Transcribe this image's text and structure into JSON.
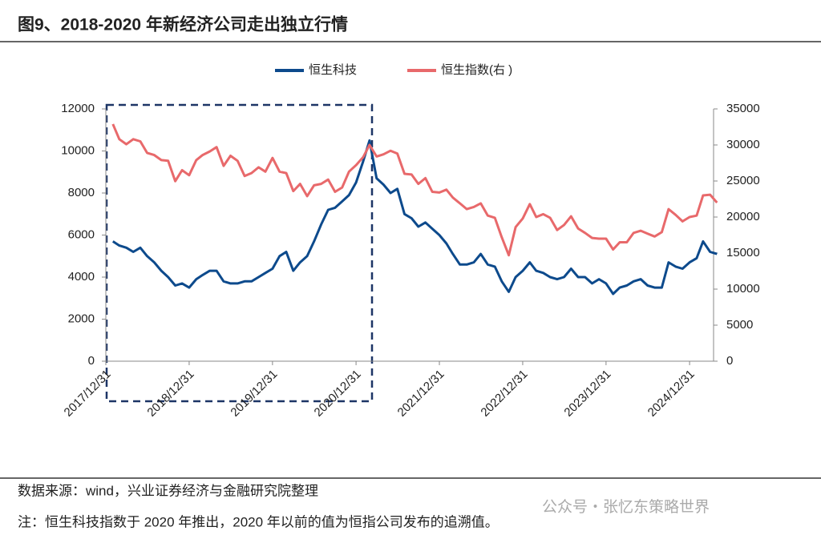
{
  "chart_data": {
    "type": "line",
    "title": "图9、2018-2020 年新经济公司走出独立行情",
    "source": "数据来源：wind，兴业证券经济与金融研究院整理",
    "note": "注：恒生科技指数于 2020 年推出，2020 年以前的值为恒指公司发布的追溯值。",
    "watermark": "公众号・张忆东策略世界",
    "x": [
      "2018/01/31",
      "2018/02/28",
      "2018/03/31",
      "2018/04/30",
      "2018/05/31",
      "2018/06/30",
      "2018/07/31",
      "2018/08/31",
      "2018/09/30",
      "2018/10/31",
      "2018/11/30",
      "2018/12/31",
      "2019/01/31",
      "2019/02/28",
      "2019/03/31",
      "2019/04/30",
      "2019/05/31",
      "2019/06/30",
      "2019/07/31",
      "2019/08/31",
      "2019/09/30",
      "2019/10/31",
      "2019/11/30",
      "2019/12/31",
      "2020/01/31",
      "2020/02/29",
      "2020/03/31",
      "2020/04/30",
      "2020/05/31",
      "2020/06/30",
      "2020/07/31",
      "2020/08/31",
      "2020/09/30",
      "2020/10/31",
      "2020/11/30",
      "2020/12/31",
      "2021/01/31",
      "2021/02/28",
      "2021/03/31",
      "2021/04/30",
      "2021/05/31",
      "2021/06/30",
      "2021/07/31",
      "2021/08/31",
      "2021/09/30",
      "2021/10/31",
      "2021/11/30",
      "2021/12/31",
      "2022/01/31",
      "2022/02/28",
      "2022/03/31",
      "2022/04/30",
      "2022/05/31",
      "2022/06/30",
      "2022/07/31",
      "2022/08/31",
      "2022/09/30",
      "2022/10/31",
      "2022/11/30",
      "2022/12/31",
      "2023/01/31",
      "2023/02/28",
      "2023/03/31",
      "2023/04/30",
      "2023/05/31",
      "2023/06/30",
      "2023/07/31",
      "2023/08/31",
      "2023/09/30",
      "2023/10/31",
      "2023/11/30",
      "2023/12/31",
      "2024/01/31",
      "2024/02/29",
      "2024/03/31",
      "2024/04/30",
      "2024/05/31",
      "2024/06/30",
      "2024/07/31",
      "2024/08/31",
      "2024/09/30",
      "2024/10/31",
      "2024/11/30",
      "2024/12/31",
      "2025/01/31",
      "2025/02/28",
      "2025/03/31",
      "2025/04/30"
    ],
    "series": [
      {
        "name": "恒生科技",
        "color": "#0d4a8c",
        "values": [
          5700,
          5500,
          5400,
          5200,
          5400,
          5000,
          4700,
          4300,
          4000,
          3600,
          3700,
          3500,
          3900,
          4100,
          4300,
          4300,
          3800,
          3700,
          3700,
          3800,
          3800,
          4000,
          4200,
          4400,
          5000,
          5200,
          4300,
          4700,
          5000,
          5700,
          6500,
          7200,
          7300,
          7600,
          7900,
          8500,
          9500,
          10500,
          8700,
          8400,
          8000,
          8200,
          7000,
          6800,
          6400,
          6600,
          6300,
          6000,
          5600,
          5100,
          4600,
          4600,
          4700,
          5100,
          4600,
          4500,
          3800,
          3300,
          4000,
          4300,
          4700,
          4300,
          4200,
          4000,
          3900,
          4000,
          4400,
          4000,
          4000,
          3700,
          3900,
          3700,
          3200,
          3500,
          3600,
          3800,
          3900,
          3600,
          3500,
          3500,
          4700,
          4500,
          4400,
          4700,
          4900,
          5700,
          5200,
          5100
        ]
      },
      {
        "name": "恒生指数(右 )",
        "color": "#e8696b",
        "axis": "y2",
        "values": [
          32900,
          30800,
          30100,
          30800,
          30500,
          28900,
          28600,
          27900,
          27800,
          24980,
          26500,
          25800,
          27900,
          28600,
          29100,
          29700,
          27100,
          28500,
          27800,
          25700,
          26100,
          26900,
          26300,
          28200,
          26300,
          26100,
          23600,
          24600,
          22900,
          24400,
          24600,
          25200,
          23500,
          24100,
          26300,
          27200,
          28300,
          30000,
          28400,
          28700,
          29200,
          28800,
          26000,
          25900,
          24600,
          25400,
          23500,
          23400,
          23800,
          22700,
          21900,
          21100,
          21400,
          21900,
          20200,
          19900,
          17200,
          14700,
          18600,
          19800,
          21800,
          20000,
          20400,
          19900,
          18200,
          18900,
          20100,
          18400,
          17800,
          17100,
          17000,
          17000,
          15500,
          16500,
          16500,
          17800,
          18100,
          17700,
          17300,
          17900,
          21100,
          20300,
          19400,
          20000,
          20200,
          23000,
          23100,
          22000
        ]
      }
    ],
    "xlim": [
      "2017/12/31",
      "2025/04/15"
    ],
    "xticks": [
      "2017/12/31",
      "2018/12/31",
      "2019/12/31",
      "2020/12/31",
      "2021/12/31",
      "2022/12/31",
      "2023/12/31",
      "2024/12/31"
    ],
    "ylim": [
      0,
      12000
    ],
    "yticks": [
      0,
      2000,
      4000,
      6000,
      8000,
      10000,
      12000
    ],
    "y2lim": [
      0,
      35000
    ],
    "y2ticks": [
      0,
      5000,
      10000,
      15000,
      20000,
      25000,
      30000,
      35000
    ],
    "grid": false
  }
}
